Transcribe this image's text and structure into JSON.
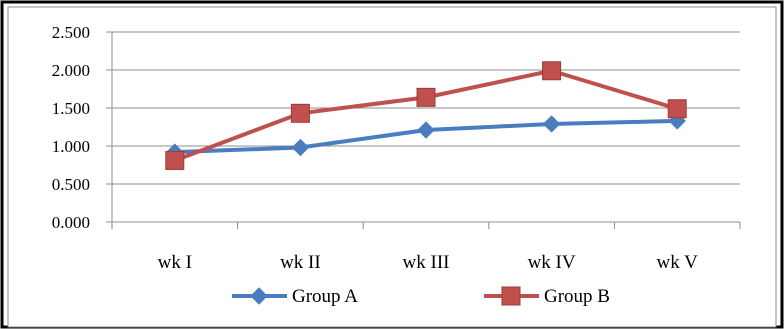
{
  "chart_data": {
    "type": "line",
    "categories": [
      "wk I",
      "wk II",
      "wk III",
      "wk IV",
      "wk V"
    ],
    "ylim": [
      0,
      2.5
    ],
    "yticks": [
      "0.000",
      "0.500",
      "1.000",
      "1.500",
      "2.000",
      "2.500"
    ],
    "grid": true,
    "legend_position": "bottom",
    "series": [
      {
        "name": "Group A",
        "values": [
          0.92,
          0.98,
          1.21,
          1.29,
          1.33
        ],
        "color": "#4a7dbf",
        "marker": "diamond"
      },
      {
        "name": "Group B",
        "values": [
          0.81,
          1.43,
          1.64,
          1.99,
          1.49
        ],
        "color": "#c0504d",
        "marker": "square"
      }
    ]
  }
}
